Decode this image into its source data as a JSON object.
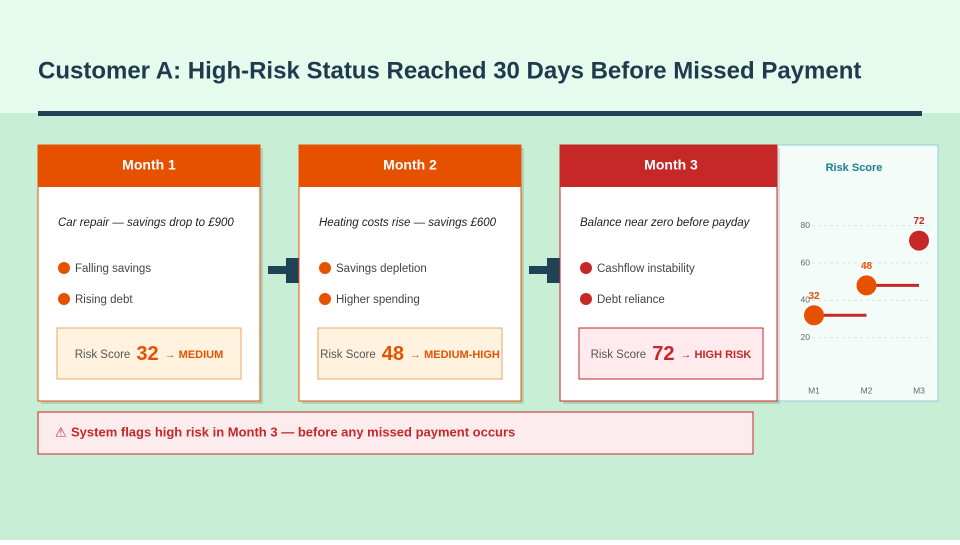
{
  "header": {
    "title": "Customer A: High-Risk Status Reached 30 Days Before Missed Payment"
  },
  "cards": [
    {
      "title": "Month 1",
      "event": "Car repair — savings drop to £900",
      "bullets": [
        "Falling savings",
        "Rising debt"
      ],
      "score_label": "Risk Score",
      "score": 32,
      "level": "→ MEDIUM",
      "color": "#e65100"
    },
    {
      "title": "Month 2",
      "event": "Heating costs rise — savings £600",
      "bullets": [
        "Savings depletion",
        "Higher spending"
      ],
      "score_label": "Risk Score",
      "score": 48,
      "level": "→ MEDIUM-HIGH",
      "color": "#e65100"
    },
    {
      "title": "Month 3",
      "event": "Balance near zero before payday",
      "bullets": [
        "Cashflow instability",
        "Debt reliance"
      ],
      "score_label": "Risk Score",
      "score": 72,
      "level": "→ HIGH RISK",
      "color": "#c62828"
    }
  ],
  "alert": {
    "icon": "⚠",
    "text": "System flags high risk in Month 3 — before any missed payment occurs"
  },
  "chart_data": {
    "type": "line",
    "title": "Risk Score",
    "categories": [
      "M1",
      "M2",
      "M3"
    ],
    "values": [
      32,
      48,
      72
    ],
    "point_colors": [
      "#e65100",
      "#e65100",
      "#c62828"
    ],
    "line_color": "#c62828",
    "ylim": [
      0,
      90
    ],
    "yticks": [
      20,
      40,
      60,
      80
    ],
    "grid": true
  }
}
